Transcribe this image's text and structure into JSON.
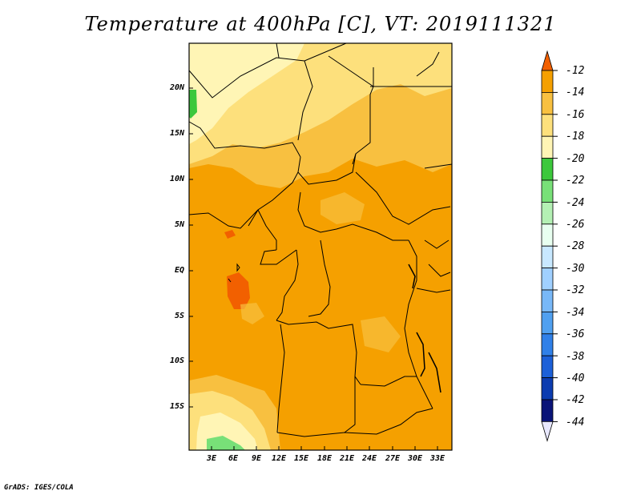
{
  "title": "Temperature at 400hPa [C], VT: 2019111321",
  "credit": "GrADS: IGES/COLA",
  "map": {
    "lat_labels": [
      "20N",
      "15N",
      "10N",
      "5N",
      "EQ",
      "5S",
      "10S",
      "15S"
    ],
    "lon_labels": [
      "3E",
      "6E",
      "9E",
      "12E",
      "15E",
      "18E",
      "21E",
      "24E",
      "27E",
      "30E",
      "33E"
    ],
    "colors": {
      "band_-16_-14": "#f5a000",
      "band_-18_-16": "#f8c040",
      "band_-20_-18": "#fde07c",
      "band_-22_-20": "#fff5b5",
      "band_-14_-12": "#f26000",
      "band_-24_-22": "#3cc83c",
      "band_-26_-24": "#78e078"
    }
  },
  "colorbar": {
    "labels": [
      "-12",
      "-14",
      "-16",
      "-18",
      "-20",
      "-22",
      "-24",
      "-26",
      "-28",
      "-30",
      "-32",
      "-34",
      "-36",
      "-38",
      "-40",
      "-42",
      "-44"
    ],
    "colors": [
      "#f26000",
      "#f5a000",
      "#f8c040",
      "#fde07c",
      "#fff5b5",
      "#3cc83c",
      "#78e078",
      "#b4f0b4",
      "#e8fff0",
      "#c8e8ff",
      "#a0d0ff",
      "#78b8f8",
      "#50a0f0",
      "#3080e8",
      "#1c60d8",
      "#0c3cb0",
      "#0a1478",
      "#e8e8ff"
    ]
  }
}
